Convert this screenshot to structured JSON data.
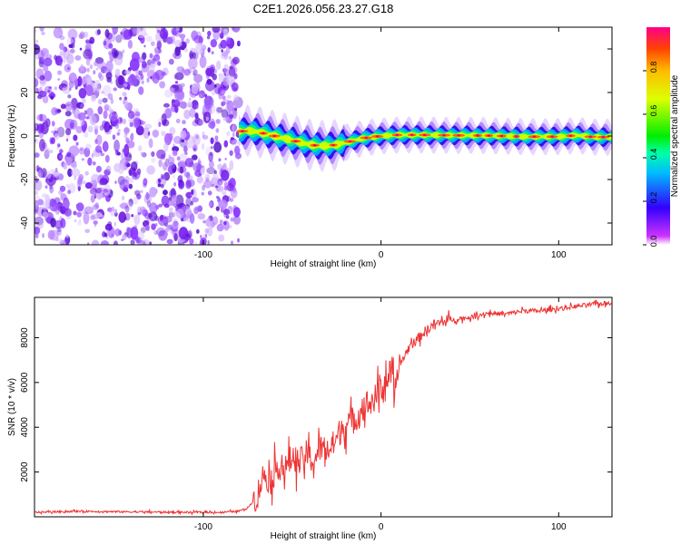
{
  "title": "C2E1.2026.056.23.27.G18",
  "chart_data": [
    {
      "type": "heatmap",
      "xlabel": "Height of straight line (km)",
      "ylabel": "Frequency (Hz)",
      "xlim": [
        -195,
        130
      ],
      "ylim": [
        -50,
        50
      ],
      "xticks": [
        -100,
        0,
        100
      ],
      "yticks": [
        -40,
        -20,
        0,
        20,
        40
      ],
      "noise_region_x": [
        -195,
        -80
      ],
      "signal_start_x": -80,
      "colorbar": {
        "label": "Normalized spectral amplitude",
        "range": [
          0,
          1
        ],
        "ticks": [
          "0.0",
          "0.2",
          "0.4",
          "0.6",
          "0.8"
        ]
      },
      "ridge": {
        "x": [
          -80,
          -75,
          -70,
          -65,
          -60,
          -55,
          -50,
          -45,
          -40,
          -35,
          -30,
          -25,
          -20,
          -15,
          -10,
          -5,
          0,
          10,
          20,
          40,
          60,
          80,
          100,
          110,
          120,
          130
        ],
        "freq_hz": [
          2,
          2.5,
          2,
          1,
          0,
          -1,
          -2,
          -3,
          -4,
          -4.5,
          -4.5,
          -4,
          -3,
          -2,
          -1,
          -0.5,
          0,
          0.5,
          0.5,
          0.3,
          0.2,
          -0.3,
          -0.3,
          0.3,
          -0.5,
          -0.5
        ]
      }
    },
    {
      "type": "line",
      "xlabel": "Height of straight line (km)",
      "ylabel": "SNR (10 * v/v)",
      "xlim": [
        -195,
        130
      ],
      "ylim": [
        0,
        9800
      ],
      "xticks": [
        -100,
        0,
        100
      ],
      "yticks": [
        2000,
        4000,
        6000,
        8000
      ],
      "series": [
        {
          "name": "SNR",
          "color": "#ee3333",
          "x": [
            -195,
            -170,
            -140,
            -110,
            -90,
            -80,
            -75,
            -70,
            -66,
            -62,
            -58,
            -54,
            -50,
            -46,
            -42,
            -38,
            -34,
            -30,
            -26,
            -22,
            -18,
            -14,
            -10,
            -6,
            -2,
            2,
            6,
            8,
            10,
            12,
            16,
            20,
            25,
            30,
            40,
            50,
            60,
            70,
            80,
            90,
            100,
            110,
            120,
            130
          ],
          "y": [
            200,
            250,
            220,
            200,
            200,
            250,
            400,
            900,
            1900,
            1600,
            2300,
            2100,
            2700,
            2400,
            2800,
            2500,
            3100,
            3000,
            3300,
            4000,
            4200,
            4400,
            5000,
            5100,
            5400,
            6000,
            6500,
            5000,
            6800,
            7000,
            7600,
            7900,
            8300,
            8600,
            8800,
            8900,
            9100,
            9050,
            9200,
            9200,
            9300,
            9400,
            9500,
            9550
          ]
        }
      ]
    }
  ]
}
